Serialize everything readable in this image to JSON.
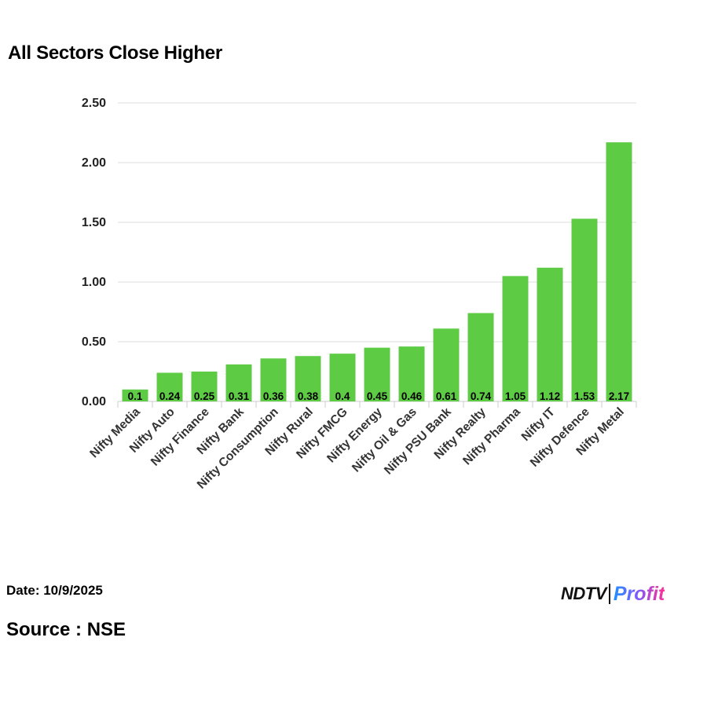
{
  "chart_data": {
    "type": "bar",
    "title": "All Sectors Close Higher",
    "categories": [
      "Nifty Media",
      "Nifty Auto",
      "Nifty Finance",
      "Nifty Bank",
      "Nifty Consumption",
      "Nifty Rural",
      "Nifty FMCG",
      "Nifty Energy",
      "Nifty Oil & Gas",
      "Nifty PSU Bank",
      "Nifty Realty",
      "Nifty Pharma",
      "Nifty IT",
      "Nifty Defence",
      "Nifty Metal"
    ],
    "values": [
      0.1,
      0.24,
      0.25,
      0.31,
      0.36,
      0.38,
      0.4,
      0.45,
      0.46,
      0.61,
      0.74,
      1.05,
      1.12,
      1.53,
      2.17
    ],
    "data_labels": [
      "0.1",
      "0.24",
      "0.25",
      "0.31",
      "0.36",
      "0.38",
      "0.4",
      "0.45",
      "0.46",
      "0.61",
      "0.74",
      "1.05",
      "1.12",
      "1.53",
      "2.17"
    ],
    "yticks": [
      "0.00",
      "0.50",
      "1.00",
      "1.50",
      "2.00",
      "2.50"
    ],
    "ylim": [
      0,
      2.5
    ],
    "xlabel": "",
    "ylabel": "",
    "grid": true,
    "bar_color": "#5ecb45",
    "gridline_color": "#dddddd"
  },
  "footer": {
    "date": "Date: 10/9/2025",
    "source": "Source : NSE"
  },
  "logo": {
    "brand": "NDTV",
    "product": "Profit"
  }
}
